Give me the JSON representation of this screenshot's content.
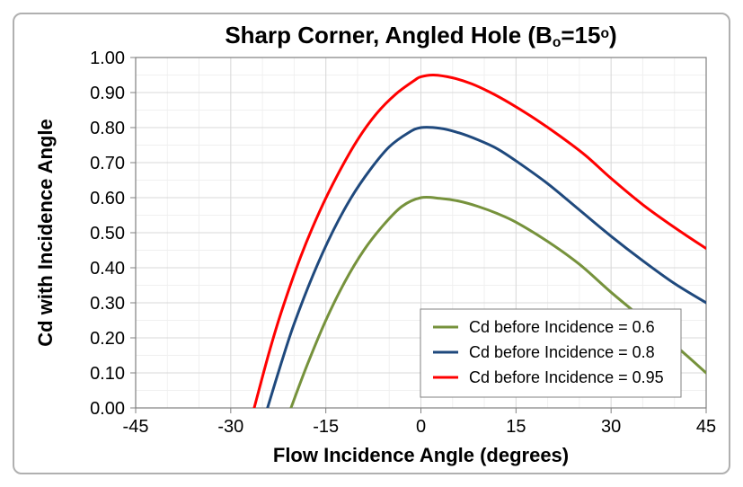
{
  "chart": {
    "type": "line",
    "title_plain": "Sharp Corner, Angled Hole (B",
    "title_sub": "o",
    "title_tail": "=15",
    "title_sup": "o",
    "title_close": ")",
    "title_fontsize": 26,
    "xlabel": "Flow Incidence Angle (degrees)",
    "ylabel": "Cd with Incidence Angle",
    "label_fontsize": 22,
    "tick_fontsize": 20,
    "legend_fontsize": 18,
    "background_color": "#ffffff",
    "plot_bg_color": "#ffffff",
    "major_grid_color": "#d9d9d9",
    "minor_grid_color": "#f0f0f0",
    "axis_line_color": "#808080",
    "border_color": "#b0b0b0",
    "xlim": [
      -45,
      45
    ],
    "ylim": [
      0.0,
      1.0
    ],
    "xticks_major": [
      -45,
      -30,
      -15,
      0,
      15,
      30,
      45
    ],
    "yticks_major": [
      0.0,
      0.1,
      0.2,
      0.3,
      0.4,
      0.5,
      0.6,
      0.7,
      0.8,
      0.9,
      1.0
    ],
    "x_minor_step": 5,
    "y_minor_step": 0.05,
    "line_width": 3,
    "series": [
      {
        "name": "Cd before Incidence = 0.6",
        "color": "#76923c",
        "points": [
          [
            -20.5,
            0.0
          ],
          [
            -18,
            0.12
          ],
          [
            -15,
            0.25
          ],
          [
            -12,
            0.36
          ],
          [
            -9,
            0.45
          ],
          [
            -6,
            0.52
          ],
          [
            -3,
            0.575
          ],
          [
            0,
            0.6
          ],
          [
            3,
            0.598
          ],
          [
            6,
            0.59
          ],
          [
            9,
            0.575
          ],
          [
            12,
            0.555
          ],
          [
            15,
            0.53
          ],
          [
            20,
            0.475
          ],
          [
            25,
            0.41
          ],
          [
            30,
            0.33
          ],
          [
            35,
            0.255
          ],
          [
            40,
            0.18
          ],
          [
            45,
            0.1
          ]
        ]
      },
      {
        "name": "Cd before Incidence = 0.8",
        "color": "#1f497d",
        "points": [
          [
            -24.2,
            0.0
          ],
          [
            -22,
            0.13
          ],
          [
            -20,
            0.24
          ],
          [
            -17,
            0.38
          ],
          [
            -14,
            0.5
          ],
          [
            -11,
            0.6
          ],
          [
            -8,
            0.68
          ],
          [
            -5,
            0.745
          ],
          [
            -2,
            0.785
          ],
          [
            0,
            0.8
          ],
          [
            3,
            0.798
          ],
          [
            6,
            0.785
          ],
          [
            9,
            0.765
          ],
          [
            12,
            0.74
          ],
          [
            15,
            0.705
          ],
          [
            20,
            0.64
          ],
          [
            25,
            0.565
          ],
          [
            30,
            0.49
          ],
          [
            35,
            0.42
          ],
          [
            40,
            0.355
          ],
          [
            45,
            0.3
          ]
        ]
      },
      {
        "name": "Cd before Incidence = 0.95",
        "color": "#ff0000",
        "points": [
          [
            -26.3,
            0.0
          ],
          [
            -24,
            0.155
          ],
          [
            -22,
            0.275
          ],
          [
            -19,
            0.43
          ],
          [
            -16,
            0.56
          ],
          [
            -13,
            0.67
          ],
          [
            -10,
            0.765
          ],
          [
            -7,
            0.84
          ],
          [
            -4,
            0.895
          ],
          [
            -1,
            0.935
          ],
          [
            0,
            0.945
          ],
          [
            2,
            0.95
          ],
          [
            5,
            0.942
          ],
          [
            8,
            0.925
          ],
          [
            11,
            0.9
          ],
          [
            14,
            0.87
          ],
          [
            18,
            0.825
          ],
          [
            22,
            0.775
          ],
          [
            26,
            0.72
          ],
          [
            30,
            0.655
          ],
          [
            35,
            0.58
          ],
          [
            40,
            0.515
          ],
          [
            45,
            0.455
          ]
        ]
      }
    ],
    "legend": {
      "box_border_color": "#808080",
      "box_bg": "#ffffff",
      "swatch_len": 28
    }
  }
}
